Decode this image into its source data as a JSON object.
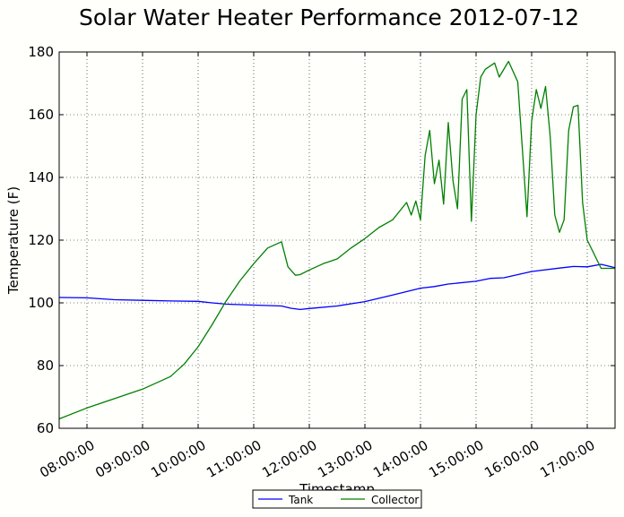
{
  "chart_data": {
    "type": "line",
    "title": "Solar Water Heater Performance 2012-07-12",
    "xlabel": "Timestamp",
    "ylabel": "Temperature (F)",
    "xlim": [
      "07:30:00",
      "17:30:00"
    ],
    "ylim": [
      60,
      180
    ],
    "xticks": [
      "08:00:00",
      "09:00:00",
      "10:00:00",
      "11:00:00",
      "12:00:00",
      "13:00:00",
      "14:00:00",
      "15:00:00",
      "16:00:00",
      "17:00:00"
    ],
    "yticks": [
      "60",
      "80",
      "100",
      "120",
      "140",
      "160",
      "180"
    ],
    "grid": true,
    "legend_position": "bottom-center",
    "series": [
      {
        "name": "Tank",
        "color": "#0000ff",
        "x": [
          "07:30",
          "08:00",
          "08:30",
          "09:00",
          "09:30",
          "10:00",
          "10:15",
          "10:30",
          "11:00",
          "11:30",
          "11:40",
          "11:50",
          "12:00",
          "12:30",
          "13:00",
          "13:30",
          "14:00",
          "14:15",
          "14:30",
          "15:00",
          "15:15",
          "15:30",
          "16:00",
          "16:30",
          "16:45",
          "17:00",
          "17:15",
          "17:30"
        ],
        "y": [
          101.7,
          101.6,
          101.0,
          100.8,
          100.6,
          100.5,
          100.0,
          99.6,
          99.3,
          99.0,
          98.3,
          97.9,
          98.2,
          99.0,
          100.4,
          102.5,
          104.7,
          105.2,
          106.0,
          106.9,
          107.8,
          108.0,
          110.0,
          111.1,
          111.6,
          111.5,
          112.3,
          111.2
        ]
      },
      {
        "name": "Collector",
        "color": "#008000",
        "x": [
          "07:30",
          "08:00",
          "08:30",
          "09:00",
          "09:30",
          "09:45",
          "10:00",
          "10:15",
          "10:30",
          "10:45",
          "11:00",
          "11:15",
          "11:30",
          "11:37",
          "11:45",
          "11:50",
          "12:00",
          "12:15",
          "12:30",
          "12:45",
          "13:00",
          "13:15",
          "13:30",
          "13:45",
          "13:50",
          "13:55",
          "14:00",
          "14:05",
          "14:10",
          "14:15",
          "14:20",
          "14:25",
          "14:30",
          "14:35",
          "14:40",
          "14:45",
          "14:50",
          "14:55",
          "15:00",
          "15:05",
          "15:10",
          "15:15",
          "15:20",
          "15:25",
          "15:35",
          "15:45",
          "15:55",
          "16:00",
          "16:05",
          "16:10",
          "16:15",
          "16:20",
          "16:25",
          "16:30",
          "16:35",
          "16:40",
          "16:45",
          "16:50",
          "16:55",
          "17:00",
          "17:05",
          "17:10",
          "17:15",
          "17:20",
          "17:25",
          "17:30"
        ],
        "y": [
          63.0,
          66.5,
          69.5,
          72.5,
          76.5,
          80.5,
          86.0,
          93.0,
          100.5,
          107.0,
          112.5,
          117.5,
          119.5,
          111.5,
          108.8,
          109.0,
          110.5,
          112.5,
          114.0,
          117.5,
          120.5,
          124.0,
          126.5,
          132.0,
          128.0,
          132.5,
          126.5,
          147.0,
          155.0,
          138.0,
          145.5,
          131.5,
          157.5,
          139.0,
          130.0,
          165.0,
          168.0,
          126.0,
          160.0,
          172.0,
          174.5,
          175.5,
          176.5,
          172.0,
          177.0,
          170.5,
          127.5,
          158.0,
          168.0,
          162.0,
          169.0,
          153.0,
          128.0,
          122.5,
          126.5,
          155.0,
          162.5,
          163.0,
          132.0,
          120.0,
          117.0,
          114.0,
          111.0,
          111.0,
          111.0,
          111.0
        ]
      }
    ]
  }
}
